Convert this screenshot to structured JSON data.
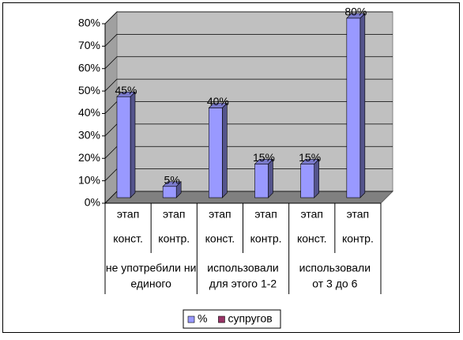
{
  "chart_data": {
    "type": "bar3d",
    "categories": [
      [
        "этап",
        "конст."
      ],
      [
        "этап",
        "контр."
      ],
      [
        "этап",
        "конст."
      ],
      [
        "этап",
        "контр."
      ],
      [
        "этап",
        "конст."
      ],
      [
        "этап",
        "контр."
      ]
    ],
    "groups": [
      [
        "не употребили ни",
        "единого"
      ],
      [
        "использовали",
        "для этого 1-2"
      ],
      [
        "использовали",
        "от 3 до 6"
      ]
    ],
    "series": [
      {
        "name": "%",
        "color": "#9999ff",
        "values": [
          45,
          5,
          40,
          15,
          15,
          80
        ],
        "value_labels": [
          "45%",
          "5%",
          "40%",
          "15%",
          "15%",
          "80%"
        ]
      },
      {
        "name": "супругов",
        "color": "#993366",
        "values": [
          null,
          null,
          null,
          null,
          null,
          null
        ]
      }
    ],
    "ylim": [
      0,
      80
    ],
    "yticks": [
      {
        "value": 0,
        "label": "0%"
      },
      {
        "value": 10,
        "label": "10%"
      },
      {
        "value": 20,
        "label": "20%"
      },
      {
        "value": 30,
        "label": "30%"
      },
      {
        "value": 40,
        "label": "40%"
      },
      {
        "value": 50,
        "label": "50%"
      },
      {
        "value": 60,
        "label": "60%"
      },
      {
        "value": 70,
        "label": "70%"
      },
      {
        "value": 80,
        "label": "80%"
      }
    ],
    "grid": true
  }
}
